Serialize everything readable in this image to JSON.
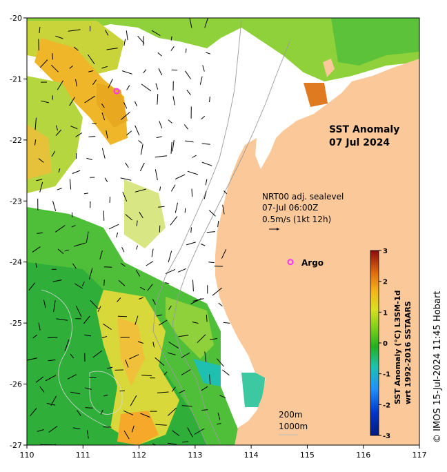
{
  "title": {
    "line1": "SST Anomaly",
    "line2": "07 Jul 2024"
  },
  "annotation": {
    "line1": "NRT00 adj. sealevel",
    "line2": "07-Jul 06:00Z",
    "line3": "0.5m/s (1kt 12h)"
  },
  "argo": {
    "label": "Argo",
    "lon": 114.7,
    "lat": -24.0,
    "color": "#ff33ff"
  },
  "argo_marker_2": {
    "lon": 111.6,
    "lat": -21.2
  },
  "axes": {
    "lon_ticks": [
      "110",
      "111",
      "112",
      "113",
      "114",
      "115",
      "116",
      "117"
    ],
    "lat_ticks": [
      "-20",
      "-21",
      "-22",
      "-23",
      "-24",
      "-25",
      "-26",
      "-27"
    ],
    "lon_range": [
      110,
      117
    ],
    "lat_range": [
      -27,
      -20
    ]
  },
  "contours": {
    "label1": "200m",
    "label2": "1000m"
  },
  "colorbar": {
    "ticks": [
      "3",
      "2",
      "1",
      "0",
      "-1",
      "-2",
      "-3"
    ],
    "label1": "SST Anomaly (°C) L3SM-1d",
    "label2": "wrt 1992-2016 SSTAARS",
    "range": [
      -3,
      3
    ]
  },
  "credit": "© IMOS 15-Jul-2024 11:45 Hobart",
  "colors": {
    "land": "#fbc899",
    "missing": "#ffffff",
    "argo": "#ff33ff"
  }
}
